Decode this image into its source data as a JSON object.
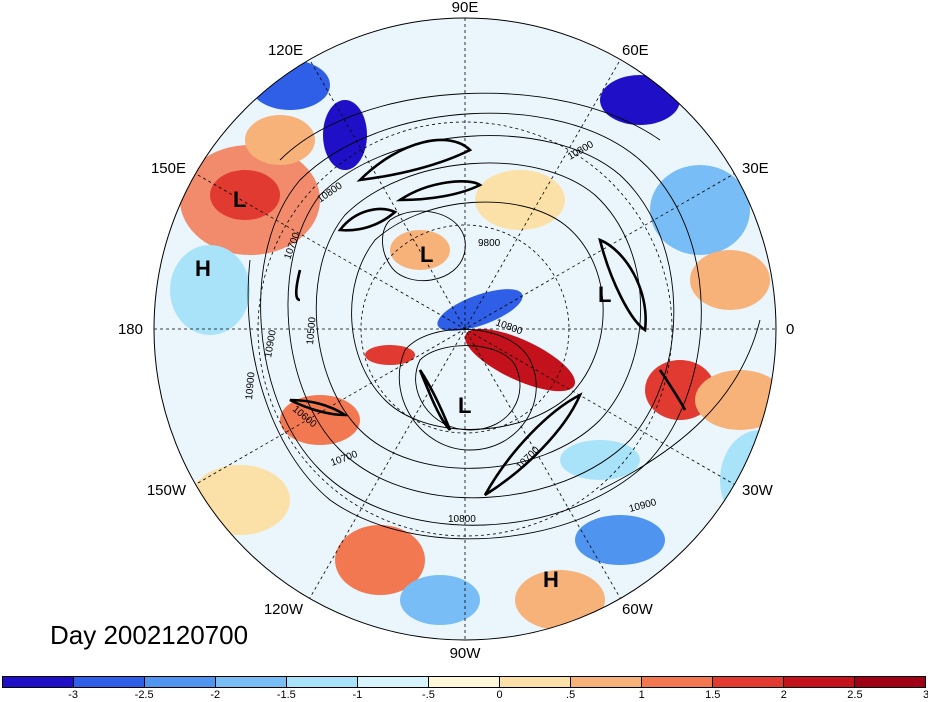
{
  "title": "Day 2002120700",
  "longitude_labels": {
    "lon_90e": "90E",
    "lon_60e": "60E",
    "lon_30e": "30E",
    "lon_0": "0",
    "lon_30w": "30W",
    "lon_60w": "60W",
    "lon_90w": "90W",
    "lon_120w": "120W",
    "lon_150w": "150W",
    "lon_180": "180",
    "lon_150e": "150E",
    "lon_120e": "120E"
  },
  "markers": [
    {
      "type": "L"
    },
    {
      "type": "L"
    },
    {
      "type": "L"
    },
    {
      "type": "L"
    },
    {
      "type": "H"
    },
    {
      "type": "H"
    }
  ],
  "contour_labels": [
    "10800",
    "10800",
    "9800",
    "10700",
    "10500",
    "10900",
    "10900",
    "10600",
    "10700",
    "10800",
    "10700",
    "10900",
    "10800"
  ],
  "colorbar": {
    "colors": [
      "#1f10c8",
      "#2e5fe6",
      "#4f95f0",
      "#78bdf5",
      "#a9e3f9",
      "#d7f3fb",
      "#fdf6d9",
      "#fbe1a8",
      "#f7b27a",
      "#f27852",
      "#e13a30",
      "#c4121d",
      "#9e0016"
    ],
    "labels": [
      "-3",
      "-2.5",
      "-2",
      "-1.5",
      "-1",
      "-.5",
      "0",
      ".5",
      "1",
      "1.5",
      "2",
      "2.5",
      "3"
    ]
  }
}
